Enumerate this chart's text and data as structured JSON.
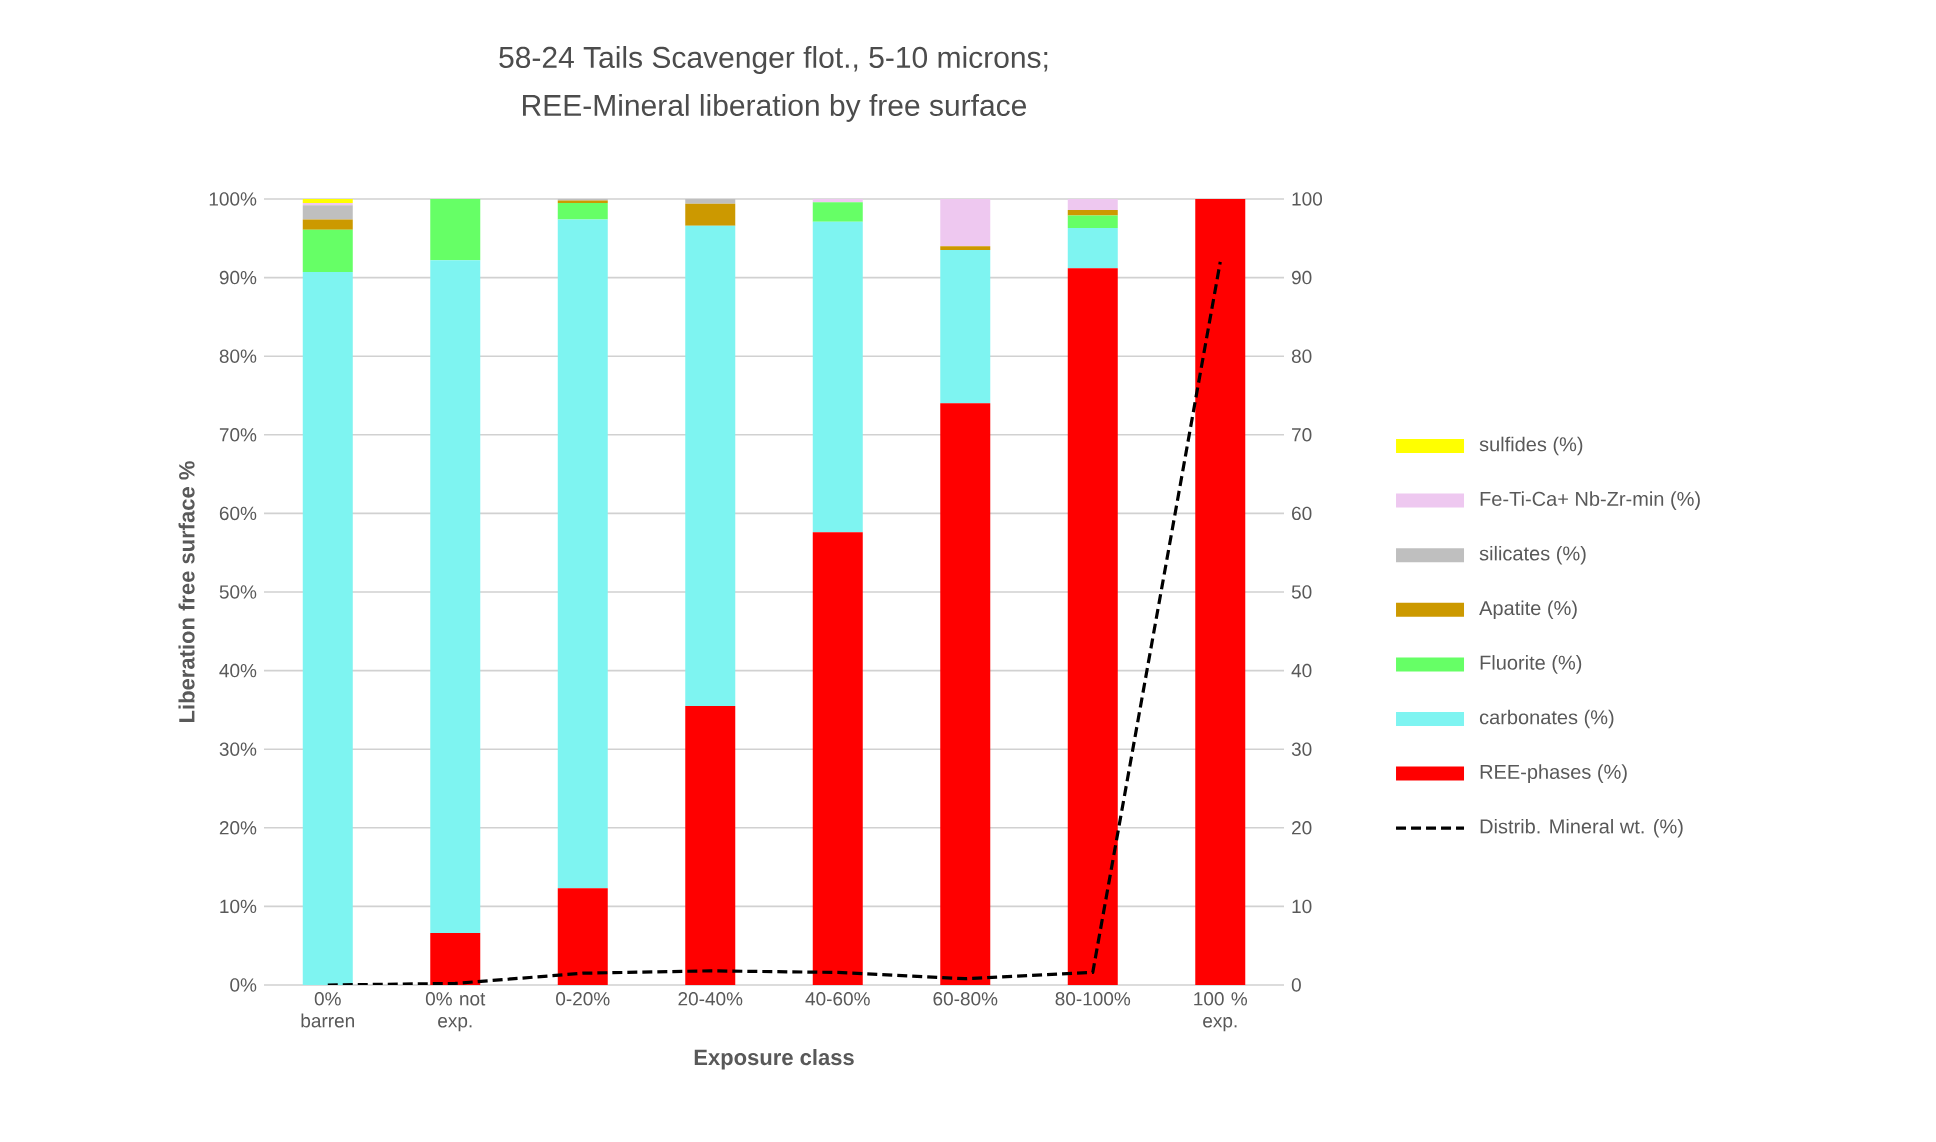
{
  "chart_data": {
    "type": "bar",
    "stacked": true,
    "title": "58-24 Tails Scavenger flot., 5-10 microns;",
    "subtitle": "REE-Mineral liberation by free surface",
    "xlabel": "Exposure class",
    "ylabel": "Liberation free surface %",
    "categories": [
      "0% barren",
      "0% not exp.",
      "0-20%",
      "20-40%",
      "40-60%",
      "60-80%",
      "80-100%",
      "100 % exp."
    ],
    "series": [
      {
        "name": "REE-phases (%)",
        "color": "#ff0000",
        "values": [
          0,
          6.6,
          12.3,
          35.5,
          57.6,
          74.0,
          91.2,
          100
        ]
      },
      {
        "name": "carbonates (%)",
        "color": "#7ef4f1",
        "values": [
          90.7,
          85.6,
          85.1,
          61.1,
          39.5,
          19.5,
          5.1,
          0
        ]
      },
      {
        "name": "Fluorite (%)",
        "color": "#66ff66",
        "values": [
          5.4,
          7.8,
          2.1,
          0,
          2.5,
          0,
          1.6,
          0
        ]
      },
      {
        "name": "Apatite (%)",
        "color": "#cc9900",
        "values": [
          1.3,
          0,
          0.3,
          2.8,
          0,
          0.5,
          0.7,
          0
        ]
      },
      {
        "name": "silicates (%)",
        "color": "#bfbfbf",
        "values": [
          1.8,
          0,
          0.2,
          0.6,
          0,
          0,
          0,
          0
        ]
      },
      {
        "name": "Fe-Ti-Ca+ Nb-Zr-min (%)",
        "color": "#eec8f0",
        "values": [
          0.3,
          0,
          0,
          0,
          0.4,
          6.0,
          1.4,
          0
        ]
      },
      {
        "name": "sulfides (%)",
        "color": "#ffff00",
        "values": [
          0.5,
          0,
          0,
          0,
          0,
          0,
          0,
          0
        ]
      },
      {
        "name": "Distrib. Mineral wt. (%)",
        "color": "#000000",
        "type": "line",
        "axis": "y2",
        "line_style": "dashed",
        "marker": "none",
        "values": [
          0,
          0.2,
          1.5,
          1.8,
          1.6,
          0.8,
          1.6,
          92
        ]
      }
    ],
    "ylim": [
      0,
      100
    ],
    "yticks": [
      {
        "value": 0,
        "label": "0%"
      },
      {
        "value": 10,
        "label": "10%"
      },
      {
        "value": 20,
        "label": "20%"
      },
      {
        "value": 30,
        "label": "30%"
      },
      {
        "value": 40,
        "label": "40%"
      },
      {
        "value": 50,
        "label": "50%"
      },
      {
        "value": 60,
        "label": "60%"
      },
      {
        "value": 70,
        "label": "70%"
      },
      {
        "value": 80,
        "label": "80%"
      },
      {
        "value": 90,
        "label": "90%"
      },
      {
        "value": 100,
        "label": "100%"
      }
    ],
    "y2lim": [
      0,
      100
    ],
    "y2ticks": [
      0,
      10,
      20,
      30,
      40,
      50,
      60,
      70,
      80,
      90,
      100
    ],
    "grid": "y",
    "legend": "right"
  }
}
